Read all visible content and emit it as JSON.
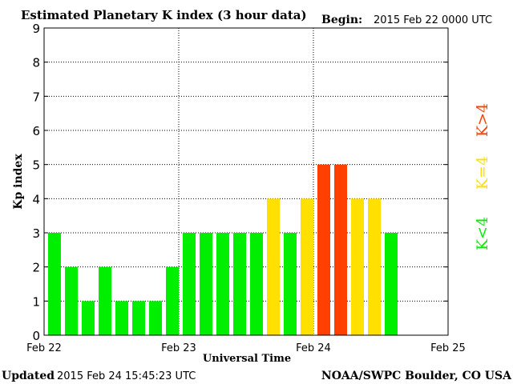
{
  "header": {
    "title": "Estimated Planetary K index (3 hour data)",
    "begin_label": "Begin:",
    "begin_value": "2015 Feb 22 0000 UTC"
  },
  "footer": {
    "updated_label": "Updated",
    "updated_value": "2015 Feb 24 15:45:23 UTC",
    "source": "NOAA/SWPC Boulder, CO USA"
  },
  "legend": {
    "items": [
      {
        "label": "K>4",
        "color": "#ff4000"
      },
      {
        "label": "K=4",
        "color": "#ffe000"
      },
      {
        "label": "K<4",
        "color": "#00ee00"
      }
    ]
  },
  "colors": {
    "below_storm": "#00ee00",
    "at_threshold": "#ffe000",
    "storm": "#ff4000"
  },
  "chart_data": {
    "type": "bar",
    "title": "Estimated Planetary K index (3 hour data)",
    "xlabel": "Universal Time",
    "ylabel": "Kp index",
    "ylim": [
      0,
      9
    ],
    "yticks": [
      "0",
      "1",
      "2",
      "3",
      "4",
      "5",
      "6",
      "7",
      "8",
      "9"
    ],
    "xticks": [
      "Feb 22",
      "Feb 23",
      "Feb 24",
      "Feb 25"
    ],
    "grid": true,
    "bins_per_day": 8,
    "days": 3,
    "values": [
      3,
      2,
      1,
      2,
      1,
      1,
      1,
      2,
      3,
      3,
      3,
      3,
      3,
      4,
      3,
      4,
      5,
      5,
      4,
      4,
      3
    ]
  }
}
